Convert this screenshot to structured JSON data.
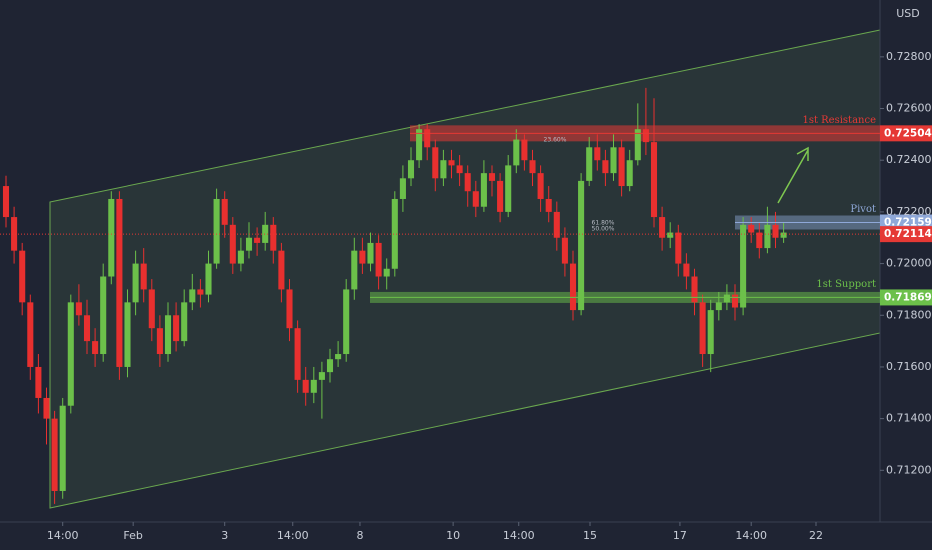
{
  "chart_data": {
    "type": "candlestick",
    "unit": "USD",
    "up_color": "#6cc04a",
    "down_color": "#e8302f",
    "grid": false,
    "xlim": [
      -0.74,
      107.9
    ],
    "xticks": [
      {
        "value": 7,
        "label": "14:00"
      },
      {
        "value": 15.7,
        "label": "Feb"
      },
      {
        "value": 27,
        "label": "3"
      },
      {
        "value": 35.4,
        "label": "14:00"
      },
      {
        "value": 43.7,
        "label": "8"
      },
      {
        "value": 55.2,
        "label": "10"
      },
      {
        "value": 63.3,
        "label": "14:00"
      },
      {
        "value": 72.1,
        "label": "15"
      },
      {
        "value": 83.2,
        "label": "17"
      },
      {
        "value": 92,
        "label": "14:00"
      },
      {
        "value": 100,
        "label": "22"
      }
    ],
    "ylim": [
      0.71,
      0.7302
    ],
    "yticks": [
      {
        "value": 0.712,
        "label": "0.71200"
      },
      {
        "value": 0.714,
        "label": "0.71400"
      },
      {
        "value": 0.716,
        "label": "0.71600"
      },
      {
        "value": 0.718,
        "label": "0.71800"
      },
      {
        "value": 0.72,
        "label": "0.72000"
      },
      {
        "value": 0.722,
        "label": "0.72200"
      },
      {
        "value": 0.724,
        "label": "0.72400"
      },
      {
        "value": 0.726,
        "label": "0.72600"
      },
      {
        "value": 0.728,
        "label": "0.72800"
      }
    ],
    "open": [
      0.723,
      0.7218,
      0.7205,
      0.7185,
      0.716,
      0.7148,
      0.714,
      0.7112,
      0.7145,
      0.7185,
      0.718,
      0.717,
      0.7165,
      0.7195,
      0.7225,
      0.716,
      0.7185,
      0.72,
      0.719,
      0.7175,
      0.7165,
      0.718,
      0.717,
      0.7185,
      0.719,
      0.7188,
      0.72,
      0.7225,
      0.7215,
      0.72,
      0.7205,
      0.721,
      0.7208,
      0.7215,
      0.7205,
      0.719,
      0.7175,
      0.7155,
      0.715,
      0.7155,
      0.7158,
      0.7163,
      0.7165,
      0.719,
      0.7205,
      0.72,
      0.7208,
      0.7195,
      0.7198,
      0.7225,
      0.7233,
      0.724,
      0.7252,
      0.7245,
      0.7233,
      0.724,
      0.7238,
      0.7235,
      0.7228,
      0.7222,
      0.7235,
      0.7232,
      0.722,
      0.7238,
      0.7248,
      0.724,
      0.7235,
      0.7225,
      0.722,
      0.721,
      0.72,
      0.7182,
      0.7232,
      0.7245,
      0.724,
      0.7235,
      0.7245,
      0.723,
      0.724,
      0.7252,
      0.7247,
      0.7218,
      0.721,
      0.7212,
      0.72,
      0.7195,
      0.7185,
      0.7165,
      0.7182,
      0.7185,
      0.7188,
      0.7183,
      0.7215,
      0.7212,
      0.7206,
      0.7215,
      0.721
    ],
    "high": [
      0.7234,
      0.7222,
      0.7208,
      0.7188,
      0.7165,
      0.7152,
      0.7143,
      0.7148,
      0.7188,
      0.7192,
      0.7186,
      0.7175,
      0.72,
      0.7228,
      0.7228,
      0.719,
      0.7205,
      0.7206,
      0.7194,
      0.718,
      0.7185,
      0.7185,
      0.719,
      0.7196,
      0.7194,
      0.7205,
      0.7229,
      0.7228,
      0.7218,
      0.721,
      0.7216,
      0.7214,
      0.722,
      0.7218,
      0.7208,
      0.7194,
      0.7178,
      0.716,
      0.716,
      0.7162,
      0.7167,
      0.717,
      0.7194,
      0.721,
      0.721,
      0.7212,
      0.7211,
      0.7202,
      0.7228,
      0.7238,
      0.7245,
      0.7254,
      0.7254,
      0.7248,
      0.7244,
      0.7244,
      0.7242,
      0.7238,
      0.7232,
      0.724,
      0.7238,
      0.7235,
      0.7242,
      0.7252,
      0.725,
      0.7244,
      0.7238,
      0.723,
      0.7224,
      0.7214,
      0.7205,
      0.7235,
      0.7249,
      0.725,
      0.7244,
      0.725,
      0.7248,
      0.7244,
      0.7262,
      0.7268,
      0.7264,
      0.7222,
      0.7216,
      0.7215,
      0.7204,
      0.7198,
      0.7188,
      0.7186,
      0.7189,
      0.7192,
      0.7192,
      0.7218,
      0.7218,
      0.7216,
      0.7222,
      0.722,
      0.7216
    ],
    "low": [
      0.7214,
      0.72,
      0.718,
      0.7155,
      0.7142,
      0.713,
      0.7107,
      0.7109,
      0.7142,
      0.7176,
      0.7165,
      0.716,
      0.7162,
      0.7192,
      0.7155,
      0.7156,
      0.718,
      0.7185,
      0.717,
      0.716,
      0.7162,
      0.7166,
      0.7168,
      0.7182,
      0.7183,
      0.7185,
      0.7198,
      0.721,
      0.7196,
      0.7197,
      0.7202,
      0.7203,
      0.7205,
      0.72,
      0.7185,
      0.717,
      0.715,
      0.7145,
      0.7146,
      0.714,
      0.7154,
      0.716,
      0.7162,
      0.7186,
      0.7196,
      0.7197,
      0.719,
      0.719,
      0.7195,
      0.722,
      0.723,
      0.7237,
      0.724,
      0.7228,
      0.723,
      0.7233,
      0.723,
      0.7222,
      0.7218,
      0.722,
      0.7226,
      0.7216,
      0.7218,
      0.7235,
      0.7236,
      0.723,
      0.722,
      0.7216,
      0.7205,
      0.7195,
      0.7178,
      0.718,
      0.723,
      0.7236,
      0.723,
      0.7232,
      0.7226,
      0.7228,
      0.7238,
      0.7242,
      0.7214,
      0.7205,
      0.7206,
      0.7195,
      0.719,
      0.718,
      0.716,
      0.7158,
      0.7178,
      0.7182,
      0.7178,
      0.718,
      0.7208,
      0.7202,
      0.7204,
      0.7206,
      0.7208
    ],
    "close": [
      0.7218,
      0.7205,
      0.7185,
      0.716,
      0.7148,
      0.714,
      0.7112,
      0.7145,
      0.7185,
      0.718,
      0.717,
      0.7165,
      0.7195,
      0.7225,
      0.716,
      0.7185,
      0.72,
      0.719,
      0.7175,
      0.7165,
      0.718,
      0.717,
      0.7185,
      0.719,
      0.7188,
      0.72,
      0.7225,
      0.7215,
      0.72,
      0.7205,
      0.721,
      0.7208,
      0.7215,
      0.7205,
      0.719,
      0.7175,
      0.7155,
      0.715,
      0.7155,
      0.7158,
      0.7163,
      0.7165,
      0.719,
      0.7205,
      0.72,
      0.7208,
      0.7195,
      0.7198,
      0.7225,
      0.7233,
      0.724,
      0.7252,
      0.7245,
      0.7233,
      0.724,
      0.7238,
      0.7235,
      0.7228,
      0.7222,
      0.7235,
      0.7232,
      0.722,
      0.7238,
      0.7248,
      0.724,
      0.7235,
      0.7225,
      0.722,
      0.721,
      0.72,
      0.7182,
      0.7232,
      0.7245,
      0.724,
      0.7235,
      0.7245,
      0.723,
      0.724,
      0.7252,
      0.7247,
      0.7218,
      0.721,
      0.7212,
      0.72,
      0.7195,
      0.7185,
      0.7165,
      0.7182,
      0.7185,
      0.7188,
      0.7183,
      0.7215,
      0.7212,
      0.7206,
      0.7215,
      0.721,
      0.7212
    ],
    "levels": [
      {
        "name": "1st Resistance",
        "value": 0.72504,
        "color": "#e53935"
      },
      {
        "name": "Pivot",
        "value": 0.72159,
        "color": "#8fa8d8"
      },
      {
        "value": 0.72114,
        "color": "#e53935"
      },
      {
        "name": "1st Support",
        "value": 0.71869,
        "color": "#6cc04a"
      }
    ],
    "fib_labels": [
      "23.60%",
      "61.80%",
      "50.00%"
    ]
  }
}
